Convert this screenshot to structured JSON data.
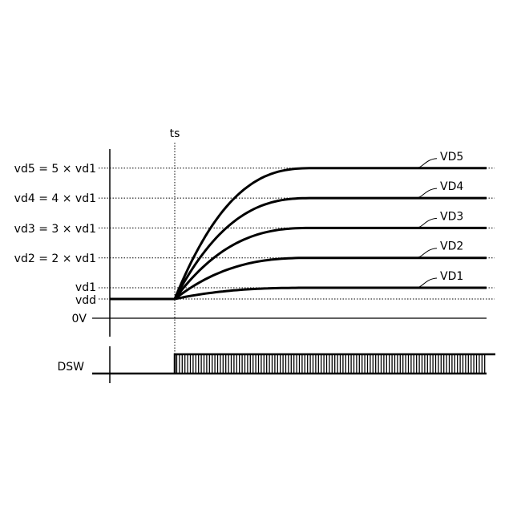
{
  "time_label": "ts",
  "y_labels": {
    "vd5": "vd5 = 5 × vd1",
    "vd4": "vd4 = 4 × vd1",
    "vd3": "vd3 = 3 × vd1",
    "vd2": "vd2 = 2 × vd1",
    "vd1": "vd1",
    "vdd": "vdd",
    "zero": "0V"
  },
  "signal_label": "DSW",
  "curves": [
    {
      "name": "VD1",
      "multiple": 1
    },
    {
      "name": "VD2",
      "multiple": 2
    },
    {
      "name": "VD3",
      "multiple": 3
    },
    {
      "name": "VD4",
      "multiple": 4
    },
    {
      "name": "VD5",
      "multiple": 5
    }
  ],
  "colors": {
    "line": "#000000",
    "background": "#ffffff"
  }
}
